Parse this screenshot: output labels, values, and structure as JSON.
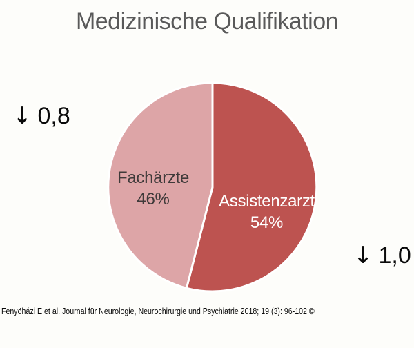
{
  "title": "Medizinische Qualifikation",
  "chart_data": {
    "type": "pie",
    "title": "Medizinische Qualifikation",
    "slices": [
      {
        "label": "Assistenzarzt",
        "value": 54,
        "pct_label": "54%",
        "color": "#bd5350",
        "text_color": "#ffffff"
      },
      {
        "label": "Fachärzte",
        "value": 46,
        "pct_label": "46%",
        "color": "#dda5a7",
        "text_color": "#3f3a3a"
      }
    ],
    "start_angle_deg": 0,
    "direction": "clockwise",
    "separator_color": "#ffffff",
    "legend": "none",
    "data_labels": "inside",
    "title_color": "#595959"
  },
  "annotations": [
    {
      "arrow": "↓",
      "value": "0,8",
      "position": "left"
    },
    {
      "arrow": "↓",
      "value": "1,0",
      "position": "bottom-right"
    }
  ],
  "footer": {
    "citation": "Fenyöházi E et al. Journal für Neurologie, Neurochirurgie und Psychiatrie 2018; 19 (3): 96-102 ©"
  }
}
